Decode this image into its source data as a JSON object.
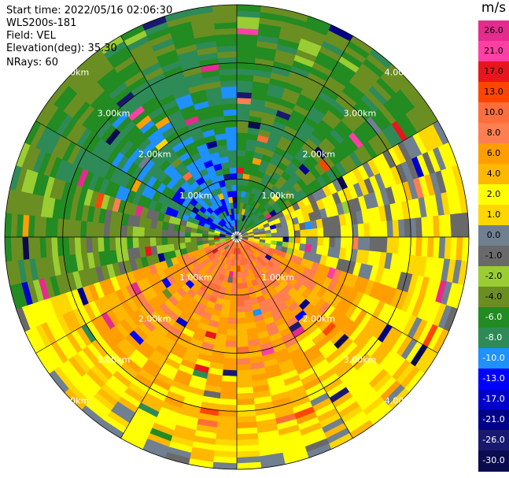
{
  "header": {
    "start_time": "Start time: 2022/05/16 02:06:30",
    "station": "WLS200s-181",
    "field": "Field: VEL",
    "elevation": "Elevation(deg): 35.30",
    "nrays": "NRays: 60"
  },
  "colorbar": {
    "unit": "m/s",
    "bins": [
      {
        "label": "26.0",
        "color": "#e62b8f"
      },
      {
        "label": "21.0",
        "color": "#ff3fa4"
      },
      {
        "label": "17.0",
        "color": "#e8161c"
      },
      {
        "label": "13.0",
        "color": "#ff4500"
      },
      {
        "label": "10.0",
        "color": "#ff6e3a"
      },
      {
        "label": "8.0",
        "color": "#ff7f50"
      },
      {
        "label": "6.0",
        "color": "#ff9e00"
      },
      {
        "label": "4.0",
        "color": "#ffb700"
      },
      {
        "label": "2.0",
        "color": "#ffff00"
      },
      {
        "label": "1.0",
        "color": "#ffd700"
      },
      {
        "label": "0.0",
        "color": "#708090"
      },
      {
        "label": "-1.0",
        "color": "#696969"
      },
      {
        "label": "-2.0",
        "color": "#9acd32"
      },
      {
        "label": "-4.0",
        "color": "#6b8e23"
      },
      {
        "label": "-6.0",
        "color": "#228b22"
      },
      {
        "label": "-8.0",
        "color": "#2e8b57"
      },
      {
        "label": "-10.0",
        "color": "#1e90ff"
      },
      {
        "label": "-13.0",
        "color": "#0000ff"
      },
      {
        "label": "-17.0",
        "color": "#0000cd"
      },
      {
        "label": "-21.0",
        "color": "#00008b"
      },
      {
        "label": "-26.0",
        "color": "#191970"
      },
      {
        "label": "-30.0",
        "color": "#0b0b50"
      }
    ]
  },
  "chart_data": {
    "type": "heatmap",
    "projection": "polar-ppi",
    "range_rings": [
      {
        "range_km": 1.0,
        "label": "1.00km"
      },
      {
        "range_km": 2.0,
        "label": "2.00km"
      },
      {
        "range_km": 3.0,
        "label": "3.00km"
      },
      {
        "range_km": 4.0,
        "label": "4.00km"
      }
    ],
    "max_range_km": 4.0,
    "nrays": 60,
    "gate_length_km": 0.1,
    "spoke_interval_deg": 30,
    "sector_velocity_ms": [
      {
        "azimuth_deg_from": 0,
        "azimuth_deg_to": 60,
        "near_ms": -6,
        "far_ms": -4
      },
      {
        "azimuth_deg_from": 60,
        "azimuth_deg_to": 110,
        "near_ms": 1,
        "far_ms": 2
      },
      {
        "azimuth_deg_from": 110,
        "azimuth_deg_to": 180,
        "near_ms": 10,
        "far_ms": 2
      },
      {
        "azimuth_deg_from": 180,
        "azimuth_deg_to": 250,
        "near_ms": 10,
        "far_ms": 2
      },
      {
        "azimuth_deg_from": 250,
        "azimuth_deg_to": 290,
        "near_ms": -2,
        "far_ms": -4
      },
      {
        "azimuth_deg_from": 290,
        "azimuth_deg_to": 360,
        "near_ms": -10,
        "far_ms": -4
      }
    ]
  }
}
